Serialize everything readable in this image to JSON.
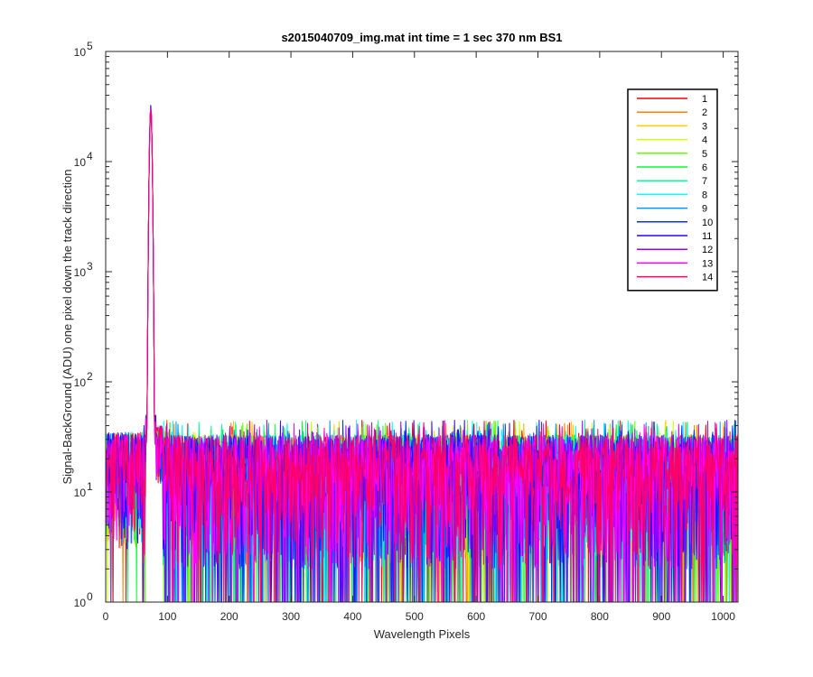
{
  "chart_data": {
    "type": "line",
    "title": "s2015040709_img.mat int time = 1 sec  370 nm BS1",
    "xlabel": "Wavelength Pixels",
    "ylabel": "Signal-BackGround (ADU) one pixel down the track direction",
    "xlim": [
      0,
      1024
    ],
    "ylim": [
      1,
      100000
    ],
    "yscale": "log",
    "xticks": [
      0,
      100,
      200,
      300,
      400,
      500,
      600,
      700,
      800,
      900,
      1000
    ],
    "yticks": [
      {
        "value": 1,
        "base": "10",
        "exp": "0"
      },
      {
        "value": 10,
        "base": "10",
        "exp": "1"
      },
      {
        "value": 100,
        "base": "10",
        "exp": "2"
      },
      {
        "value": 1000,
        "base": "10",
        "exp": "3"
      },
      {
        "value": 10000,
        "base": "10",
        "exp": "4"
      },
      {
        "value": 100000,
        "base": "10",
        "exp": "5"
      }
    ],
    "grid": false,
    "legend_position": "top-right",
    "peak": {
      "x": 73,
      "y": 33000
    },
    "baseline_range": [
      2,
      40
    ],
    "series": [
      {
        "name": "1",
        "color": "#ff0000"
      },
      {
        "name": "2",
        "color": "#ff8000"
      },
      {
        "name": "3",
        "color": "#ffcc00"
      },
      {
        "name": "4",
        "color": "#ccff00"
      },
      {
        "name": "5",
        "color": "#66ff00"
      },
      {
        "name": "6",
        "color": "#00ff33"
      },
      {
        "name": "7",
        "color": "#00ff99"
      },
      {
        "name": "8",
        "color": "#00ffff"
      },
      {
        "name": "9",
        "color": "#0099ff"
      },
      {
        "name": "10",
        "color": "#0033ff"
      },
      {
        "name": "11",
        "color": "#3300ff"
      },
      {
        "name": "12",
        "color": "#9900ff"
      },
      {
        "name": "13",
        "color": "#ff00ff"
      },
      {
        "name": "14",
        "color": "#ff0066"
      }
    ]
  }
}
